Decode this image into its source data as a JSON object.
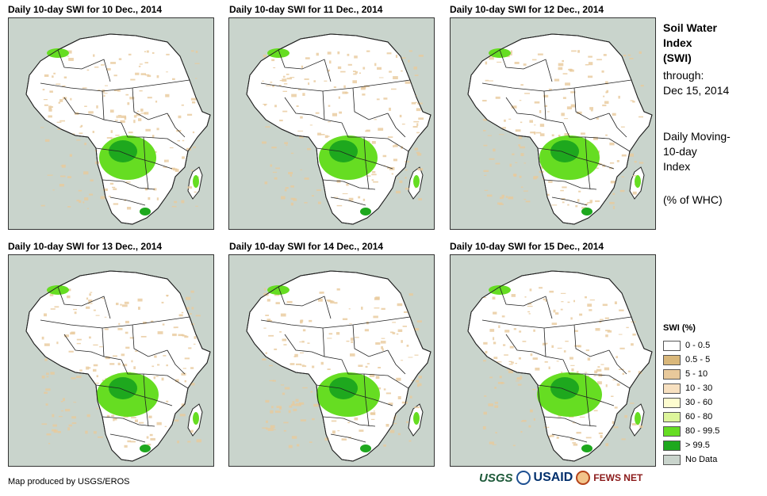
{
  "panels": [
    {
      "title": "Daily 10-day SWI for 10 Dec., 2014"
    },
    {
      "title": "Daily 10-day SWI for 11 Dec., 2014"
    },
    {
      "title": "Daily 10-day SWI for 12 Dec., 2014"
    },
    {
      "title": "Daily 10-day SWI for 13 Dec., 2014"
    },
    {
      "title": "Daily 10-day SWI for 14 Dec., 2014"
    },
    {
      "title": "Daily 10-day SWI for 15 Dec., 2014"
    }
  ],
  "sidebar": {
    "title_line1": "Soil Water",
    "title_line2": "Index",
    "title_line3": "(SWI)",
    "through_label": "through:",
    "through_date": "Dec 15, 2014",
    "desc_line1": "Daily Moving-",
    "desc_line2": "10-day",
    "desc_line3": "Index",
    "units": "(% of WHC)"
  },
  "legend": {
    "title": "SWI (%)",
    "items": [
      {
        "label": "0 - 0.5",
        "color": "#ffffff"
      },
      {
        "label": "0.5 - 5",
        "color": "#d9b77a"
      },
      {
        "label": "5 - 10",
        "color": "#e8c99b"
      },
      {
        "label": "10 - 30",
        "color": "#f7e0c0"
      },
      {
        "label": "30 - 60",
        "color": "#fdfccf"
      },
      {
        "label": "60 - 80",
        "color": "#ddf59b"
      },
      {
        "label": "80 - 99.5",
        "color": "#66dd22"
      },
      {
        "label": "> 99.5",
        "color": "#1ea81e"
      },
      {
        "label": "No Data",
        "color": "#c9d4cc"
      }
    ]
  },
  "footer": {
    "credit": "Map produced by USGS/EROS",
    "logo_usgs": "USGS",
    "logo_usaid": "USAID",
    "logo_fews": "FEWS NET"
  },
  "colors": {
    "ocean": "#c9d4cc",
    "land_dry": "#ffffff",
    "arid_speckle": "#e8c99b",
    "wet": "#66dd22",
    "very_wet": "#1ea81e",
    "border": "#222222"
  }
}
